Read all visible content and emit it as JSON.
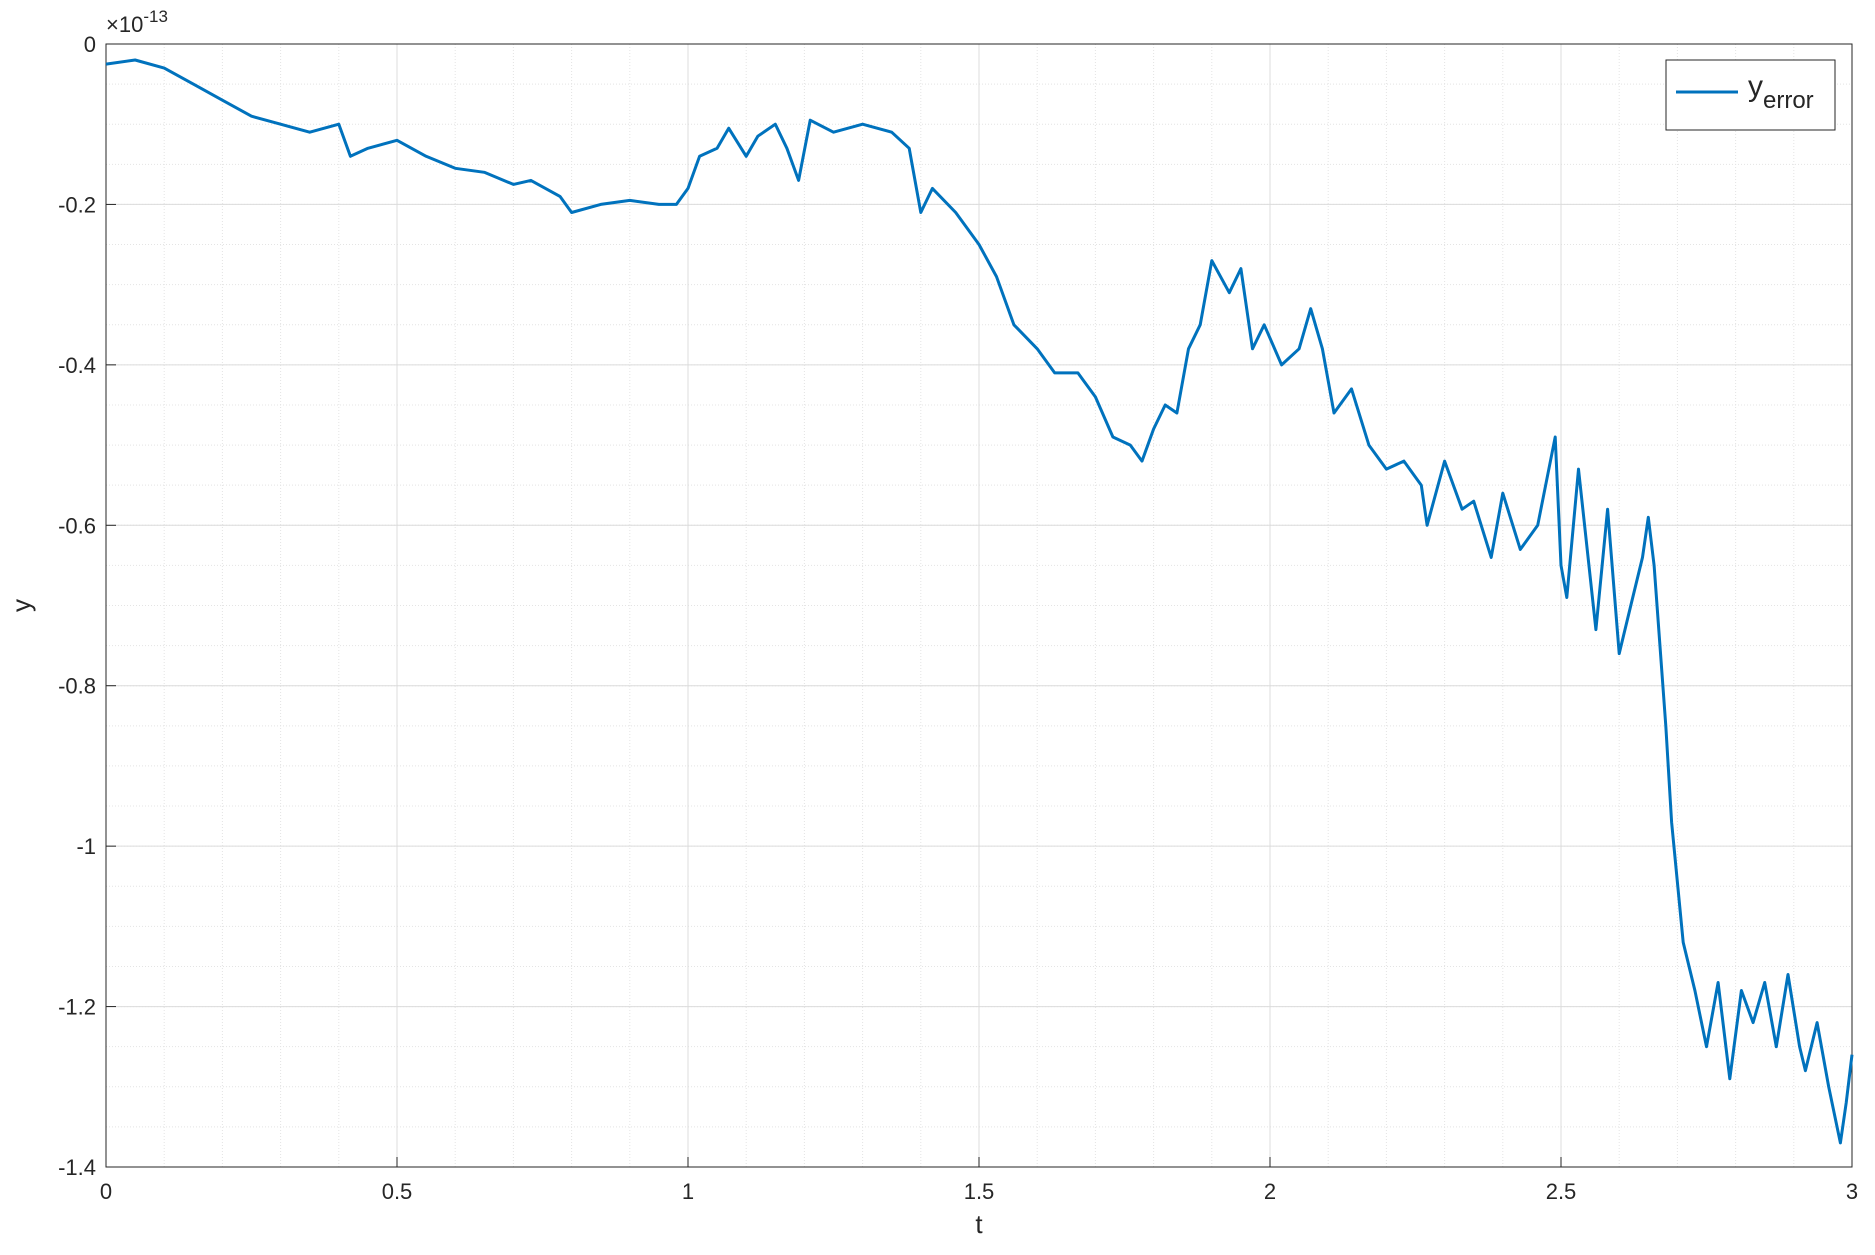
{
  "chart_data": {
    "type": "line",
    "xlabel": "t",
    "ylabel": "y",
    "y_multiplier": {
      "base": "×10",
      "exponent": "-13"
    },
    "xlim": [
      0,
      3
    ],
    "ylim": [
      -1.4,
      0
    ],
    "xticks": [
      0,
      0.5,
      1,
      1.5,
      2,
      2.5,
      3
    ],
    "yticks": [
      -1.4,
      -1.2,
      -1,
      -0.8,
      -0.6,
      -0.4,
      -0.2,
      0
    ],
    "grid": true,
    "minor_grid": true,
    "x_minor_step": 0.1,
    "y_minor_step": 0.05,
    "legend": "top-right",
    "x": [
      0,
      0.05,
      0.1,
      0.15,
      0.2,
      0.25,
      0.3,
      0.35,
      0.4,
      0.42,
      0.45,
      0.5,
      0.55,
      0.6,
      0.65,
      0.7,
      0.73,
      0.78,
      0.8,
      0.85,
      0.9,
      0.95,
      0.98,
      1.0,
      1.02,
      1.05,
      1.07,
      1.1,
      1.12,
      1.15,
      1.17,
      1.19,
      1.21,
      1.25,
      1.3,
      1.35,
      1.38,
      1.4,
      1.42,
      1.46,
      1.5,
      1.53,
      1.56,
      1.6,
      1.63,
      1.67,
      1.7,
      1.73,
      1.76,
      1.78,
      1.8,
      1.82,
      1.84,
      1.86,
      1.88,
      1.9,
      1.93,
      1.95,
      1.97,
      1.99,
      2.02,
      2.05,
      2.07,
      2.09,
      2.11,
      2.14,
      2.17,
      2.2,
      2.23,
      2.26,
      2.27,
      2.3,
      2.33,
      2.35,
      2.38,
      2.4,
      2.43,
      2.46,
      2.49,
      2.5,
      2.51,
      2.53,
      2.56,
      2.58,
      2.6,
      2.62,
      2.64,
      2.65,
      2.66,
      2.68,
      2.69,
      2.71,
      2.73,
      2.75,
      2.77,
      2.79,
      2.81,
      2.83,
      2.85,
      2.87,
      2.89,
      2.91,
      2.92,
      2.94,
      2.96,
      2.98,
      2.99,
      3.0
    ],
    "series": [
      {
        "name": "y",
        "name_subscript": "error",
        "color": "#0072bd",
        "values": [
          -0.025,
          -0.02,
          -0.03,
          -0.05,
          -0.07,
          -0.09,
          -0.1,
          -0.11,
          -0.1,
          -0.14,
          -0.13,
          -0.12,
          -0.14,
          -0.155,
          -0.16,
          -0.175,
          -0.17,
          -0.19,
          -0.21,
          -0.2,
          -0.195,
          -0.2,
          -0.2,
          -0.18,
          -0.14,
          -0.13,
          -0.105,
          -0.14,
          -0.115,
          -0.1,
          -0.13,
          -0.17,
          -0.095,
          -0.11,
          -0.1,
          -0.11,
          -0.13,
          -0.21,
          -0.18,
          -0.21,
          -0.25,
          -0.29,
          -0.35,
          -0.38,
          -0.41,
          -0.41,
          -0.44,
          -0.49,
          -0.5,
          -0.52,
          -0.48,
          -0.45,
          -0.46,
          -0.38,
          -0.35,
          -0.27,
          -0.31,
          -0.28,
          -0.38,
          -0.35,
          -0.4,
          -0.38,
          -0.33,
          -0.38,
          -0.46,
          -0.43,
          -0.5,
          -0.53,
          -0.52,
          -0.55,
          -0.6,
          -0.52,
          -0.58,
          -0.57,
          -0.64,
          -0.56,
          -0.63,
          -0.6,
          -0.49,
          -0.65,
          -0.69,
          -0.53,
          -0.73,
          -0.58,
          -0.76,
          -0.7,
          -0.64,
          -0.59,
          -0.65,
          -0.85,
          -0.97,
          -1.12,
          -1.18,
          -1.25,
          -1.17,
          -1.29,
          -1.18,
          -1.22,
          -1.17,
          -1.25,
          -1.16,
          -1.25,
          -1.28,
          -1.22,
          -1.3,
          -1.37,
          -1.32,
          -1.26
        ]
      }
    ]
  }
}
